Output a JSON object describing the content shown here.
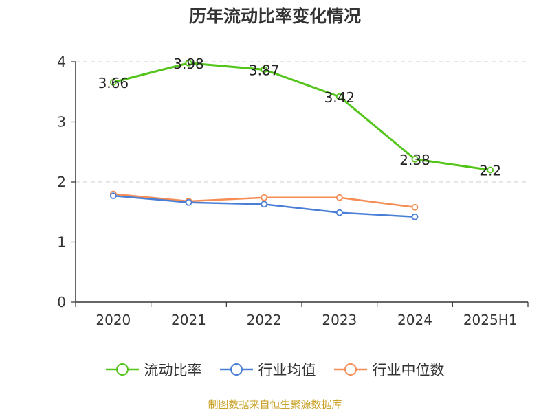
{
  "chart_data": {
    "type": "line",
    "title": "历年流动比率变化情况",
    "categories": [
      "2020",
      "2021",
      "2022",
      "2023",
      "2024",
      "2025H1"
    ],
    "y_ticks": [
      0,
      1,
      2,
      3,
      4
    ],
    "ylim": [
      0,
      4
    ],
    "grid": true,
    "legend_position": "bottom-center",
    "series": [
      {
        "name": "流动比率",
        "color": "#52c41a",
        "show_labels": true,
        "values": [
          3.66,
          3.98,
          3.87,
          3.42,
          2.38,
          2.2
        ],
        "labels": [
          "3.66",
          "3.98",
          "3.87",
          "3.42",
          "2.38",
          "2.2"
        ]
      },
      {
        "name": "行业均值",
        "color": "#4a7fd6",
        "show_labels": false,
        "values": [
          1.77,
          1.66,
          1.63,
          1.49,
          1.42,
          null
        ]
      },
      {
        "name": "行业中位数",
        "color": "#f58d55",
        "show_labels": false,
        "values": [
          1.8,
          1.68,
          1.74,
          1.74,
          1.58,
          null
        ]
      }
    ],
    "source": "制图数据来自恒生聚源数据库"
  }
}
